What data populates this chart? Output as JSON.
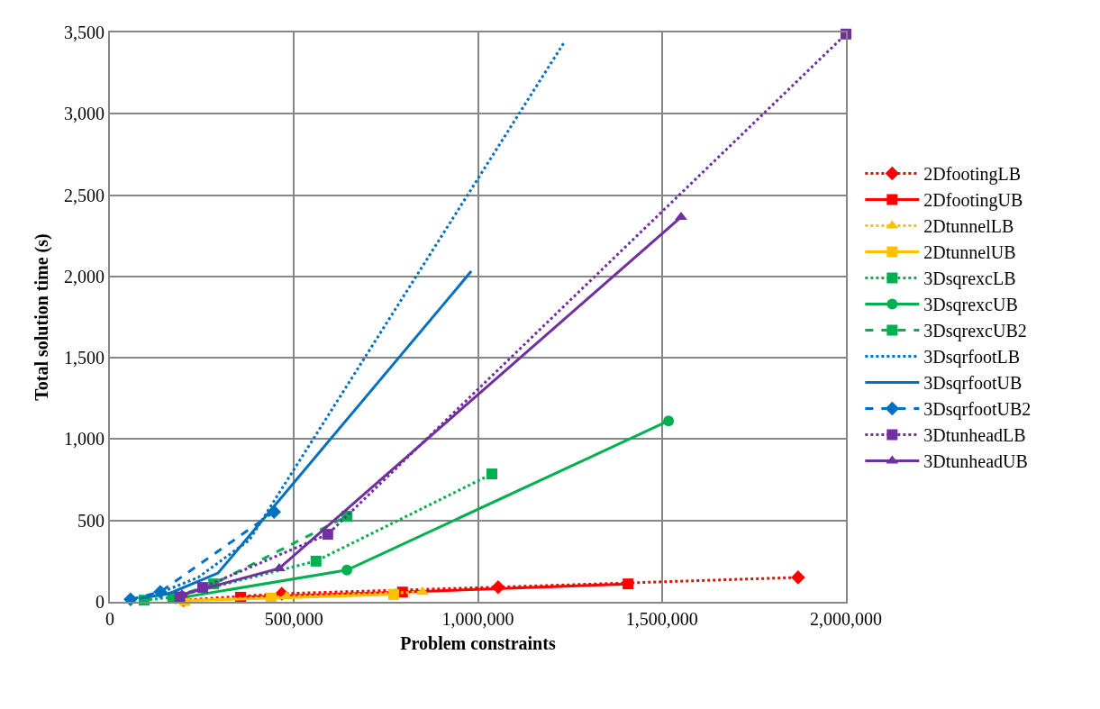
{
  "chart_data": {
    "type": "line",
    "xlabel": "Problem constraints",
    "ylabel": "Total solution time (s)",
    "xlim": [
      0,
      2000000
    ],
    "xticks": [
      {
        "value": 0,
        "label": "0"
      },
      {
        "value": 500000,
        "label": "500,000"
      },
      {
        "value": 1000000,
        "label": "1,000,000"
      },
      {
        "value": 1500000,
        "label": "1,500,000"
      },
      {
        "value": 2000000,
        "label": "2,000,000"
      }
    ],
    "ylim": [
      0,
      3500
    ],
    "yticks": [
      {
        "value": 0,
        "label": "0"
      },
      {
        "value": 500,
        "label": "500"
      },
      {
        "value": 1000,
        "label": "1,000"
      },
      {
        "value": 1500,
        "label": "1,500"
      },
      {
        "value": 2000,
        "label": "2,000"
      },
      {
        "value": 2500,
        "label": "2,500"
      },
      {
        "value": 3000,
        "label": "3,000"
      },
      {
        "value": 3500,
        "label": "3,500"
      }
    ],
    "grid": true,
    "legend": "right",
    "series": [
      {
        "name": "2DfootingLB",
        "color": "#ff0000",
        "marker": "diamond",
        "line_style": "dotted",
        "x": [
          200000,
          467000,
          1055000,
          1870000
        ],
        "values": [
          10,
          50,
          90,
          150
        ]
      },
      {
        "name": "2DfootingUB",
        "color": "#ff0000",
        "marker": "square",
        "line_style": "solid",
        "x": [
          355000,
          795000,
          1408000
        ],
        "values": [
          28,
          60,
          110
        ]
      },
      {
        "name": "2DtunnelLB",
        "color": "#ffc000",
        "marker": "triangle",
        "line_style": "dotted",
        "x": [
          203000,
          480000,
          850000
        ],
        "values": [
          5,
          33,
          60
        ]
      },
      {
        "name": "2DtunnelUB",
        "color": "#ffc000",
        "marker": "square",
        "line_style": "solid",
        "x": [
          203000,
          438000,
          771000
        ],
        "values": [
          8,
          22,
          45
        ]
      },
      {
        "name": "3DsqrexcLB",
        "color": "#00b050",
        "marker": "square",
        "line_style": "dotted",
        "x": [
          93000,
          171000,
          560000,
          1038000
        ],
        "values": [
          10,
          28,
          250,
          786
        ]
      },
      {
        "name": "3DsqrexcUB",
        "color": "#00b050",
        "marker": "circle",
        "line_style": "solid",
        "x": [
          180000,
          644000,
          1518000
        ],
        "values": [
          20,
          195,
          1112
        ]
      },
      {
        "name": "3DsqrexcUB2",
        "color": "#00b050",
        "marker": "square",
        "line_style": "dashed",
        "x": [
          171000,
          282000,
          644000
        ],
        "values": [
          28,
          110,
          526
        ]
      },
      {
        "name": "3DsqrfootLB",
        "color": "#0070c0",
        "marker": "none",
        "line_style": "dotted",
        "x": [
          130000,
          240000,
          379000,
          1236000
        ],
        "values": [
          50,
          150,
          380,
          3445
        ]
      },
      {
        "name": "3DsqrfootUB",
        "color": "#0070c0",
        "marker": "none",
        "line_style": "solid",
        "x": [
          80000,
          160000,
          294000,
          982000
        ],
        "values": [
          20,
          50,
          177,
          2032
        ]
      },
      {
        "name": "3DsqrfootUB2",
        "color": "#0070c0",
        "marker": "diamond",
        "line_style": "dashed",
        "x": [
          56000,
          137000,
          446000
        ],
        "values": [
          15,
          61,
          553
        ]
      },
      {
        "name": "3DtunheadLB",
        "color": "#7030a0",
        "marker": "square",
        "line_style": "dotted",
        "x": [
          190000,
          252000,
          592000,
          2000000
        ],
        "values": [
          30,
          88,
          415,
          3490
        ]
      },
      {
        "name": "3DtunheadUB",
        "color": "#7030a0",
        "marker": "triangle",
        "line_style": "solid",
        "x": [
          196000,
          460000,
          1552000
        ],
        "values": [
          44,
          205,
          2365
        ]
      }
    ]
  }
}
